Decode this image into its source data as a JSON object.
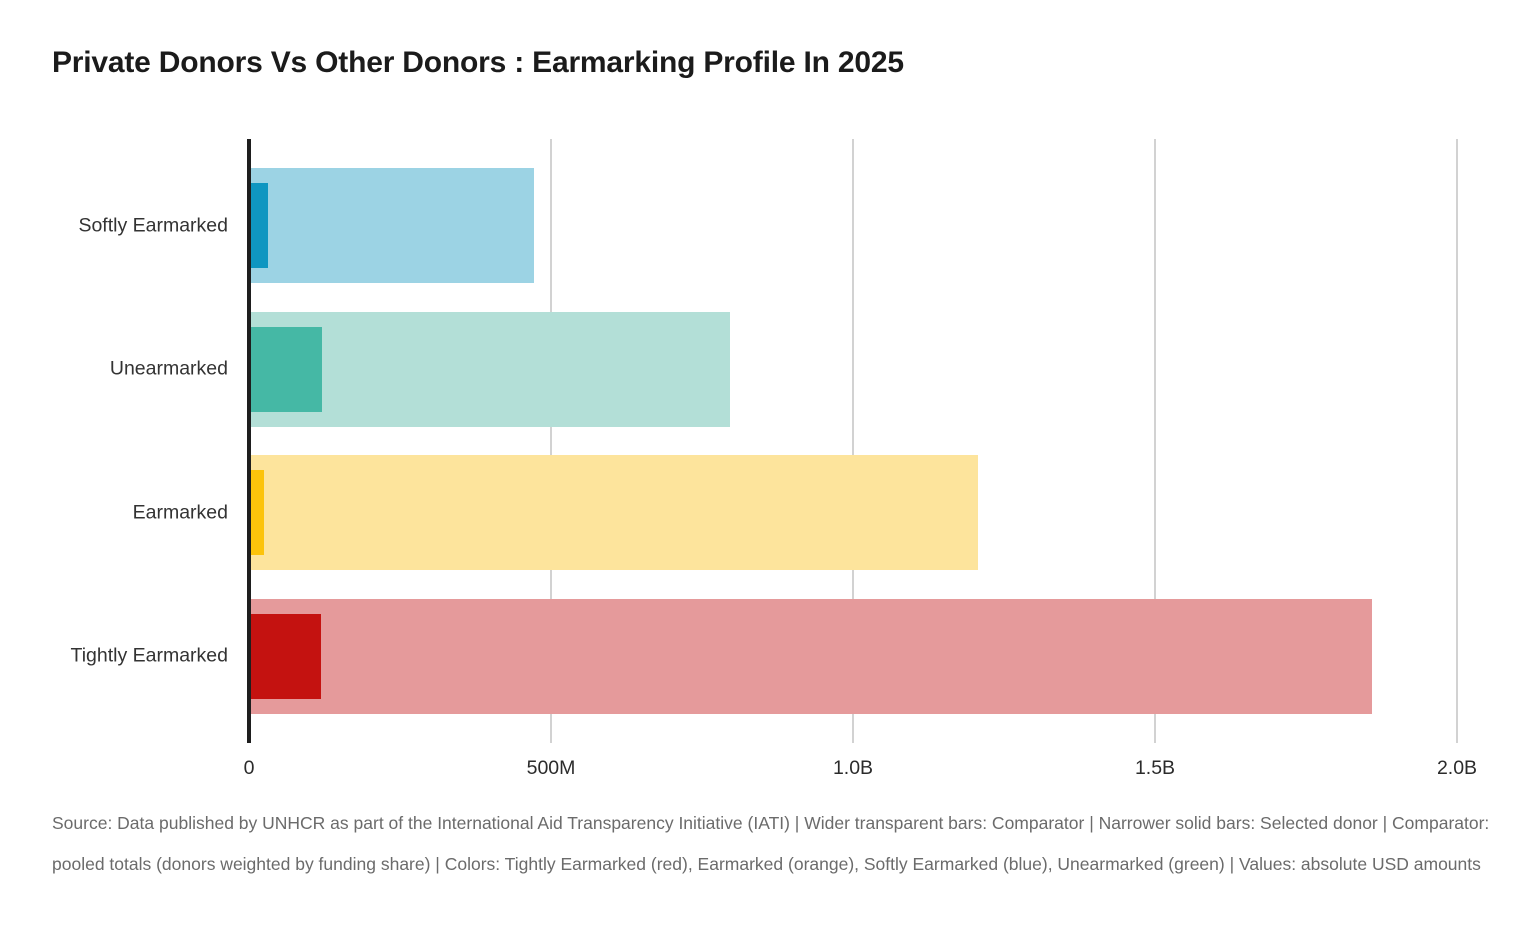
{
  "title": "Private Donors Vs Other Donors : Earmarking Profile In 2025",
  "caption": "Source: Data published by UNHCR as part of the International Aid Transparency Initiative (IATI) | Wider transparent bars: Comparator | Narrower solid bars: Selected donor | Comparator: pooled totals (donors weighted by funding share) | Colors: Tightly Earmarked (red), Earmarked (orange), Softly Earmarked (blue), Unearmarked (green) | Values: absolute USD amounts",
  "chart_data": {
    "type": "bar",
    "orientation": "horizontal",
    "title": "Private Donors Vs Other Donors : Earmarking Profile In 2025",
    "xlabel": "",
    "ylabel": "",
    "unit": "USD",
    "xlim_m": [
      0,
      2000
    ],
    "grid": "vertical gridlines at x ticks",
    "legend": "none (explained in caption: wider transparent bars = Comparator, narrower solid bars = Selected donor)",
    "categories": [
      "Softly Earmarked",
      "Unearmarked",
      "Earmarked",
      "Tightly Earmarked"
    ],
    "series": [
      {
        "name": "Comparator (wider transparent bars)",
        "values_usd_millions": [
          469,
          794,
          1206,
          1859
        ]
      },
      {
        "name": "Selected donor (narrower solid bars)",
        "values_usd_millions": [
          28,
          118,
          22,
          116
        ]
      }
    ],
    "rows": [
      {
        "label": "Softly Earmarked",
        "comparator_m": 469,
        "selected_m": 28,
        "comparator_color": "#9CD3E4",
        "selected_color": "#0F96C1"
      },
      {
        "label": "Unearmarked",
        "comparator_m": 794,
        "selected_m": 118,
        "comparator_color": "#B3DFD7",
        "selected_color": "#45B8A5"
      },
      {
        "label": "Earmarked",
        "comparator_m": 1206,
        "selected_m": 22,
        "comparator_color": "#FDE49C",
        "selected_color": "#FCC30B"
      },
      {
        "label": "Tightly Earmarked",
        "comparator_m": 1859,
        "selected_m": 116,
        "comparator_color": "#E59A9B",
        "selected_color": "#C41210"
      }
    ],
    "x_ticks": [
      {
        "label": "0",
        "value_m": 0
      },
      {
        "label": "500M",
        "value_m": 500
      },
      {
        "label": "1.0B",
        "value_m": 1000
      },
      {
        "label": "1.5B",
        "value_m": 1500
      },
      {
        "label": "2.0B",
        "value_m": 2000
      }
    ]
  }
}
